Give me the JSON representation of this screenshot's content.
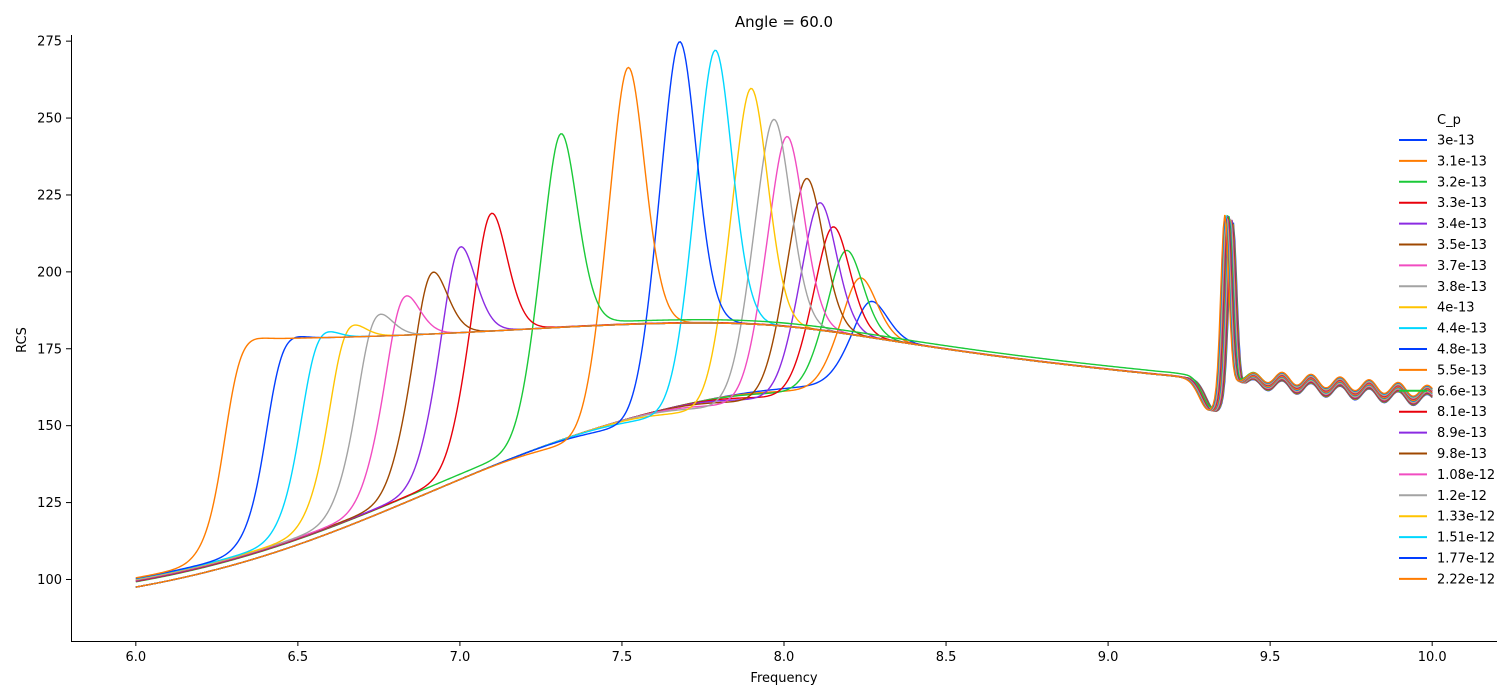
{
  "chart_data": {
    "type": "line",
    "title": "Angle = 60.0",
    "xlabel": "Frequency",
    "ylabel": "RCS",
    "xlim": [
      5.8,
      10.2
    ],
    "ylim": [
      80,
      277
    ],
    "xticks": [
      6.0,
      6.5,
      7.0,
      7.5,
      8.0,
      8.5,
      9.0,
      9.5,
      10.0
    ],
    "yticks": [
      100,
      125,
      150,
      175,
      200,
      225,
      250,
      275
    ],
    "grid": false,
    "legend": {
      "title": "C_p",
      "placement": "right"
    },
    "colors": [
      "#023eff",
      "#ff7c00",
      "#1ac938",
      "#e8000b",
      "#8b2be2",
      "#9f4800",
      "#f14cc1",
      "#a3a3a3",
      "#ffc400",
      "#00d7ff"
    ],
    "series": [
      {
        "name": "3e-13",
        "resonance": 8.24,
        "peak": 192,
        "dip": 149,
        "upper": true
      },
      {
        "name": "3.1e-13",
        "resonance": 8.21,
        "peak": 199,
        "dip": 148,
        "upper": true
      },
      {
        "name": "3.2e-13",
        "resonance": 8.17,
        "peak": 207,
        "dip": 148,
        "upper": true
      },
      {
        "name": "3.3e-13",
        "resonance": 8.13,
        "peak": 214,
        "dip": 147,
        "upper": true
      },
      {
        "name": "3.4e-13",
        "resonance": 8.09,
        "peak": 221,
        "dip": 147,
        "upper": true
      },
      {
        "name": "3.5e-13",
        "resonance": 8.05,
        "peak": 228,
        "dip": 147,
        "upper": true
      },
      {
        "name": "3.7e-13",
        "resonance": 7.99,
        "peak": 240,
        "dip": 147,
        "upper": true
      },
      {
        "name": "3.8e-13",
        "resonance": 7.95,
        "peak": 245,
        "dip": 147,
        "upper": true
      },
      {
        "name": "4e-13",
        "resonance": 7.88,
        "peak": 254,
        "dip": 147,
        "upper": true
      },
      {
        "name": "4.4e-13",
        "resonance": 7.77,
        "peak": 265,
        "dip": 148,
        "upper": true
      },
      {
        "name": "4.8e-13",
        "resonance": 7.66,
        "peak": 268,
        "dip": 148,
        "upper": true
      },
      {
        "name": "5.5e-13",
        "resonance": 7.5,
        "peak": 262,
        "dip": 148,
        "upper": true
      },
      {
        "name": "6.6e-13",
        "resonance": 7.29,
        "peak": 245,
        "dip": 144,
        "upper": false
      },
      {
        "name": "8.1e-13",
        "resonance": 7.07,
        "peak": 224,
        "dip": 141,
        "upper": false
      },
      {
        "name": "8.9e-13",
        "resonance": 6.97,
        "peak": 215,
        "dip": 140,
        "upper": false
      },
      {
        "name": "9.8e-13",
        "resonance": 6.88,
        "peak": 208,
        "dip": 139,
        "upper": false
      },
      {
        "name": "1.08e-12",
        "resonance": 6.79,
        "peak": 201,
        "dip": 138,
        "upper": false
      },
      {
        "name": "1.2e-12",
        "resonance": 6.7,
        "peak": 195,
        "dip": 137,
        "upper": false
      },
      {
        "name": "1.33e-12",
        "resonance": 6.61,
        "peak": 191,
        "dip": 137,
        "upper": false
      },
      {
        "name": "1.51e-12",
        "resonance": 6.52,
        "peak": 188,
        "dip": 136,
        "upper": false
      },
      {
        "name": "1.77e-12",
        "resonance": 6.41,
        "peak": 185,
        "dip": 136,
        "upper": false
      },
      {
        "name": "2.22e-12",
        "resonance": 6.28,
        "peak": 184,
        "dip": 136,
        "upper": false
      }
    ]
  }
}
